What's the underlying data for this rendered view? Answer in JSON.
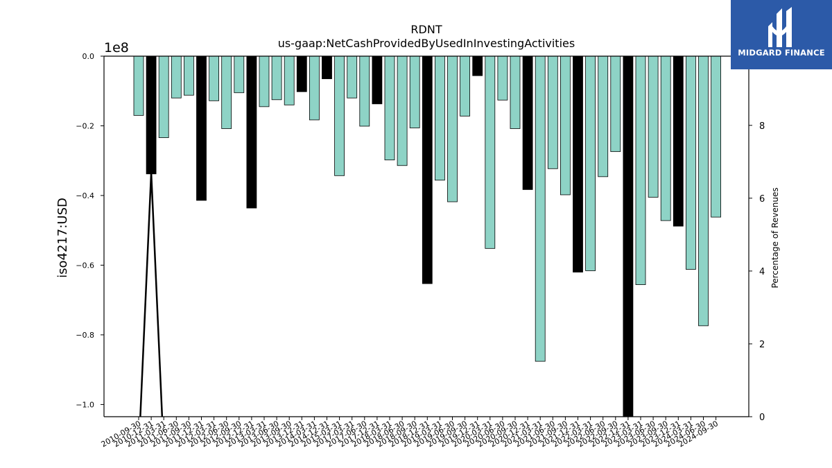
{
  "chart_data": {
    "type": "bar",
    "title": "RDNT",
    "subtitle": "us-gaap:NetCashProvidedByUsedInInvestingActivities",
    "ylabel": "iso4217:USD",
    "y2label": "Percentage of Revenues",
    "y_scale_label": "1e8",
    "ylim": [
      -1.035,
      0.0
    ],
    "y2lim": [
      0,
      9.9
    ],
    "yticks": [
      "0.0",
      "−0.2",
      "−0.4",
      "−0.6",
      "−0.8",
      "−1.0"
    ],
    "ytick_values": [
      0.0,
      -0.2,
      -0.4,
      -0.6,
      -0.8,
      -1.0
    ],
    "y2ticks": [
      "0",
      "2",
      "4",
      "6",
      "8"
    ],
    "y2tick_values": [
      0,
      2,
      4,
      6,
      8
    ],
    "grid": false,
    "colors": {
      "quarter_bar": "#8ed3c6",
      "annual_bar": "#000000",
      "line": "#000000"
    },
    "categories": [
      "2010-09-30",
      "2010-12-31",
      "2011-03-31",
      "2011-06-30",
      "2011-09-30",
      "2011-12-31",
      "2012-03-31",
      "2012-06-30",
      "2012-09-30",
      "2012-12-31",
      "2013-03-31",
      "2013-06-30",
      "2013-09-30",
      "2013-12-31",
      "2014-03-31",
      "2014-12-31",
      "2015-03-31",
      "2017-03-31",
      "2017-06-30",
      "2017-12-31",
      "2018-03-31",
      "2018-06-30",
      "2018-09-30",
      "2018-12-31",
      "2019-03-31",
      "2019-06-30",
      "2019-09-30",
      "2019-12-31",
      "2020-03-31",
      "2020-06-30",
      "2020-09-30",
      "2020-12-31",
      "2021-03-31",
      "2021-06-30",
      "2021-09-30",
      "2021-12-31",
      "2022-03-31",
      "2022-06-30",
      "2022-09-30",
      "2022-12-31",
      "2023-03-31",
      "2023-06-30",
      "2023-09-30",
      "2023-12-31",
      "2024-03-31",
      "2024-06-30",
      "2024-09-30"
    ],
    "series": [
      {
        "values": [
          -0.17,
          -0.338,
          -0.234,
          -0.12,
          -0.112,
          -0.414,
          -0.128,
          -0.208,
          -0.105,
          -0.436,
          -0.145,
          -0.125,
          -0.14,
          -0.102,
          -0.183,
          -0.065,
          -0.343,
          -0.12,
          -0.201,
          -0.137,
          -0.298,
          -0.314,
          -0.206,
          -0.653,
          -0.356,
          -0.418,
          -0.172,
          -0.056,
          -0.552,
          -0.126,
          -0.208,
          -0.383,
          -0.876,
          -0.323,
          -0.398,
          -0.62,
          -0.616,
          -0.346,
          -0.274,
          -1.035,
          -0.656,
          -0.405,
          -0.472,
          -0.488,
          -0.612,
          -0.774,
          -0.462
        ],
        "annual": [
          false,
          true,
          false,
          false,
          false,
          true,
          false,
          false,
          false,
          true,
          false,
          false,
          false,
          true,
          false,
          true,
          false,
          false,
          false,
          true,
          false,
          false,
          false,
          true,
          false,
          false,
          false,
          true,
          false,
          false,
          false,
          true,
          false,
          false,
          false,
          true,
          false,
          false,
          false,
          true,
          false,
          false,
          false,
          true,
          false,
          false,
          false
        ]
      }
    ],
    "line_series": {
      "axis": "right",
      "x_index": [
        0,
        1,
        2
      ],
      "values": [
        -1.0,
        6.7,
        -1.0
      ]
    }
  },
  "logo": {
    "text": "MIDGARD FINANCE"
  }
}
